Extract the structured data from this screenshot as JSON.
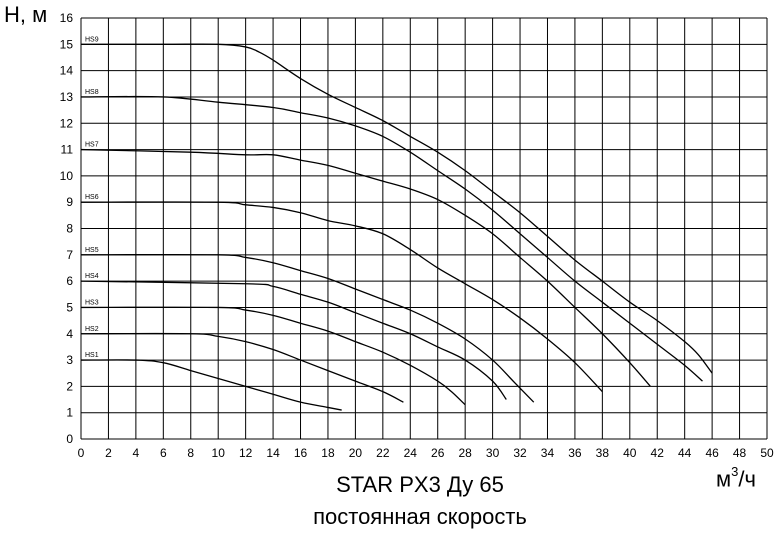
{
  "chart_data": {
    "type": "line",
    "title": "STAR PX3 Ду 65",
    "subtitle": "постоянная скорость",
    "ylabel": "Н, м",
    "xlabel_base": "м",
    "xlabel_sup": "3",
    "xlabel_tail": "/ч",
    "xlim": [
      0,
      50
    ],
    "ylim": [
      0,
      16
    ],
    "x_ticks": [
      "0",
      "2",
      "4",
      "6",
      "8",
      "10",
      "12",
      "14",
      "16",
      "18",
      "20",
      "22",
      "24",
      "26",
      "28",
      "30",
      "32",
      "34",
      "36",
      "38",
      "40",
      "42",
      "44",
      "46",
      "48",
      "50"
    ],
    "y_ticks": [
      "0",
      "1",
      "2",
      "3",
      "4",
      "5",
      "6",
      "7",
      "8",
      "9",
      "10",
      "11",
      "12",
      "13",
      "14",
      "15",
      "16"
    ],
    "grid": true,
    "series": [
      {
        "name": "HS1",
        "points": [
          [
            0,
            3
          ],
          [
            4,
            3
          ],
          [
            6,
            2.9
          ],
          [
            8,
            2.6
          ],
          [
            10,
            2.3
          ],
          [
            12,
            2
          ],
          [
            14,
            1.7
          ],
          [
            16,
            1.4
          ],
          [
            18,
            1.2
          ],
          [
            19,
            1.1
          ]
        ]
      },
      {
        "name": "HS2",
        "points": [
          [
            0,
            4
          ],
          [
            8,
            4
          ],
          [
            10,
            3.9
          ],
          [
            12,
            3.7
          ],
          [
            14,
            3.4
          ],
          [
            16,
            3
          ],
          [
            18,
            2.6
          ],
          [
            20,
            2.2
          ],
          [
            22,
            1.8
          ],
          [
            23.5,
            1.4
          ]
        ]
      },
      {
        "name": "HS3",
        "points": [
          [
            0,
            5
          ],
          [
            10,
            5
          ],
          [
            12,
            4.9
          ],
          [
            14,
            4.7
          ],
          [
            16,
            4.4
          ],
          [
            18,
            4.1
          ],
          [
            20,
            3.7
          ],
          [
            22,
            3.3
          ],
          [
            24,
            2.8
          ],
          [
            26,
            2.2
          ],
          [
            27,
            1.8
          ],
          [
            28,
            1.3
          ]
        ]
      },
      {
        "name": "HS4",
        "points": [
          [
            0,
            6
          ],
          [
            12,
            5.9
          ],
          [
            14,
            5.8
          ],
          [
            16,
            5.5
          ],
          [
            18,
            5.2
          ],
          [
            20,
            4.8
          ],
          [
            22,
            4.4
          ],
          [
            24,
            4
          ],
          [
            26,
            3.5
          ],
          [
            28,
            3
          ],
          [
            30,
            2.2
          ],
          [
            31,
            1.5
          ]
        ]
      },
      {
        "name": "HS5",
        "points": [
          [
            0,
            7
          ],
          [
            10,
            7
          ],
          [
            12,
            6.9
          ],
          [
            14,
            6.7
          ],
          [
            16,
            6.4
          ],
          [
            18,
            6.1
          ],
          [
            20,
            5.7
          ],
          [
            22,
            5.3
          ],
          [
            24,
            4.9
          ],
          [
            26,
            4.4
          ],
          [
            28,
            3.8
          ],
          [
            30,
            3
          ],
          [
            31.5,
            2.2
          ],
          [
            33,
            1.4
          ]
        ]
      },
      {
        "name": "HS6",
        "points": [
          [
            0,
            9
          ],
          [
            10,
            9
          ],
          [
            12,
            8.9
          ],
          [
            14,
            8.8
          ],
          [
            16,
            8.6
          ],
          [
            18,
            8.3
          ],
          [
            20,
            8.1
          ],
          [
            22,
            7.8
          ],
          [
            24,
            7.2
          ],
          [
            26,
            6.5
          ],
          [
            28,
            5.9
          ],
          [
            30,
            5.3
          ],
          [
            32,
            4.6
          ],
          [
            34,
            3.8
          ],
          [
            36,
            2.9
          ],
          [
            38,
            1.8
          ]
        ]
      },
      {
        "name": "HS7",
        "points": [
          [
            0,
            11
          ],
          [
            8,
            10.9
          ],
          [
            12,
            10.8
          ],
          [
            14,
            10.8
          ],
          [
            16,
            10.6
          ],
          [
            18,
            10.4
          ],
          [
            20,
            10.1
          ],
          [
            22,
            9.8
          ],
          [
            24,
            9.5
          ],
          [
            26,
            9.1
          ],
          [
            28,
            8.5
          ],
          [
            30,
            7.8
          ],
          [
            32,
            6.9
          ],
          [
            34,
            6
          ],
          [
            36,
            5
          ],
          [
            38,
            4
          ],
          [
            40,
            2.9
          ],
          [
            41.5,
            2
          ]
        ]
      },
      {
        "name": "HS8",
        "points": [
          [
            0,
            13
          ],
          [
            6,
            13
          ],
          [
            10,
            12.8
          ],
          [
            14,
            12.6
          ],
          [
            16,
            12.4
          ],
          [
            18,
            12.2
          ],
          [
            20,
            11.9
          ],
          [
            22,
            11.5
          ],
          [
            24,
            10.9
          ],
          [
            26,
            10.2
          ],
          [
            28,
            9.5
          ],
          [
            30,
            8.7
          ],
          [
            32,
            7.8
          ],
          [
            34,
            6.9
          ],
          [
            36,
            6
          ],
          [
            38,
            5.2
          ],
          [
            40,
            4.4
          ],
          [
            42,
            3.6
          ],
          [
            44,
            2.8
          ],
          [
            45.3,
            2.2
          ]
        ]
      },
      {
        "name": "HS9",
        "points": [
          [
            0,
            15
          ],
          [
            6,
            15
          ],
          [
            10,
            15
          ],
          [
            12,
            14.9
          ],
          [
            13,
            14.7
          ],
          [
            14,
            14.4
          ],
          [
            16,
            13.7
          ],
          [
            18,
            13.1
          ],
          [
            20,
            12.6
          ],
          [
            22,
            12.1
          ],
          [
            24,
            11.5
          ],
          [
            26,
            10.9
          ],
          [
            28,
            10.2
          ],
          [
            30,
            9.4
          ],
          [
            32,
            8.6
          ],
          [
            34,
            7.7
          ],
          [
            36,
            6.8
          ],
          [
            38,
            6
          ],
          [
            40,
            5.2
          ],
          [
            42,
            4.5
          ],
          [
            44,
            3.7
          ],
          [
            45,
            3.2
          ],
          [
            46,
            2.5
          ]
        ]
      }
    ]
  }
}
